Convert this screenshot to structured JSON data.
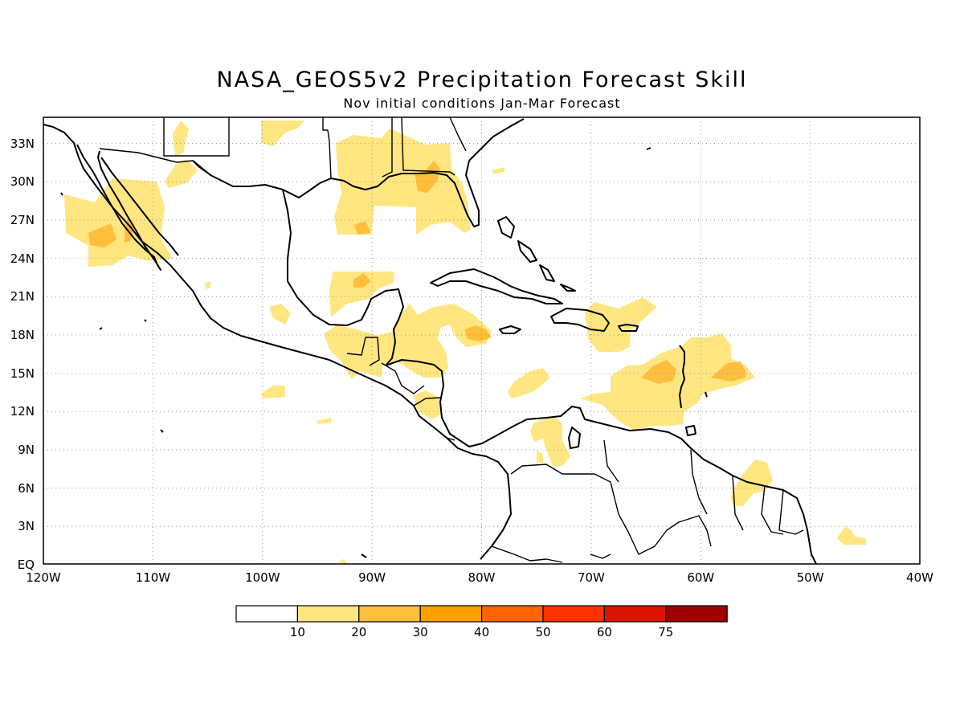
{
  "title": "NASA_GEOS5v2 Precipitation Forecast Skill",
  "subtitle": "Nov initial conditions  Jan-Mar Forecast",
  "map": {
    "lon_range": [
      -120,
      -40
    ],
    "lat_range": [
      0,
      35
    ],
    "grid": "dotted",
    "lat_labels": [
      "33N",
      "30N",
      "27N",
      "24N",
      "21N",
      "18N",
      "15N",
      "12N",
      "9N",
      "6N",
      "3N",
      "EQ"
    ],
    "lon_labels": [
      "120W",
      "110W",
      "100W",
      "90W",
      "80W",
      "70W",
      "60W",
      "50W",
      "40W"
    ]
  },
  "colorbar": {
    "colors": [
      "#ffffff",
      "#ffe680",
      "#ffbe3c",
      "#ffa000",
      "#ff6400",
      "#ff3200",
      "#dc1400",
      "#a00000"
    ],
    "labels": [
      "10",
      "20",
      "30",
      "40",
      "50",
      "60",
      "75"
    ],
    "levels": [
      10,
      20,
      30,
      40,
      50,
      60,
      75
    ]
  },
  "colors": {
    "level_10_20": "#ffe680",
    "level_20_30": "#ffbe3c",
    "coastline": "#000000"
  }
}
